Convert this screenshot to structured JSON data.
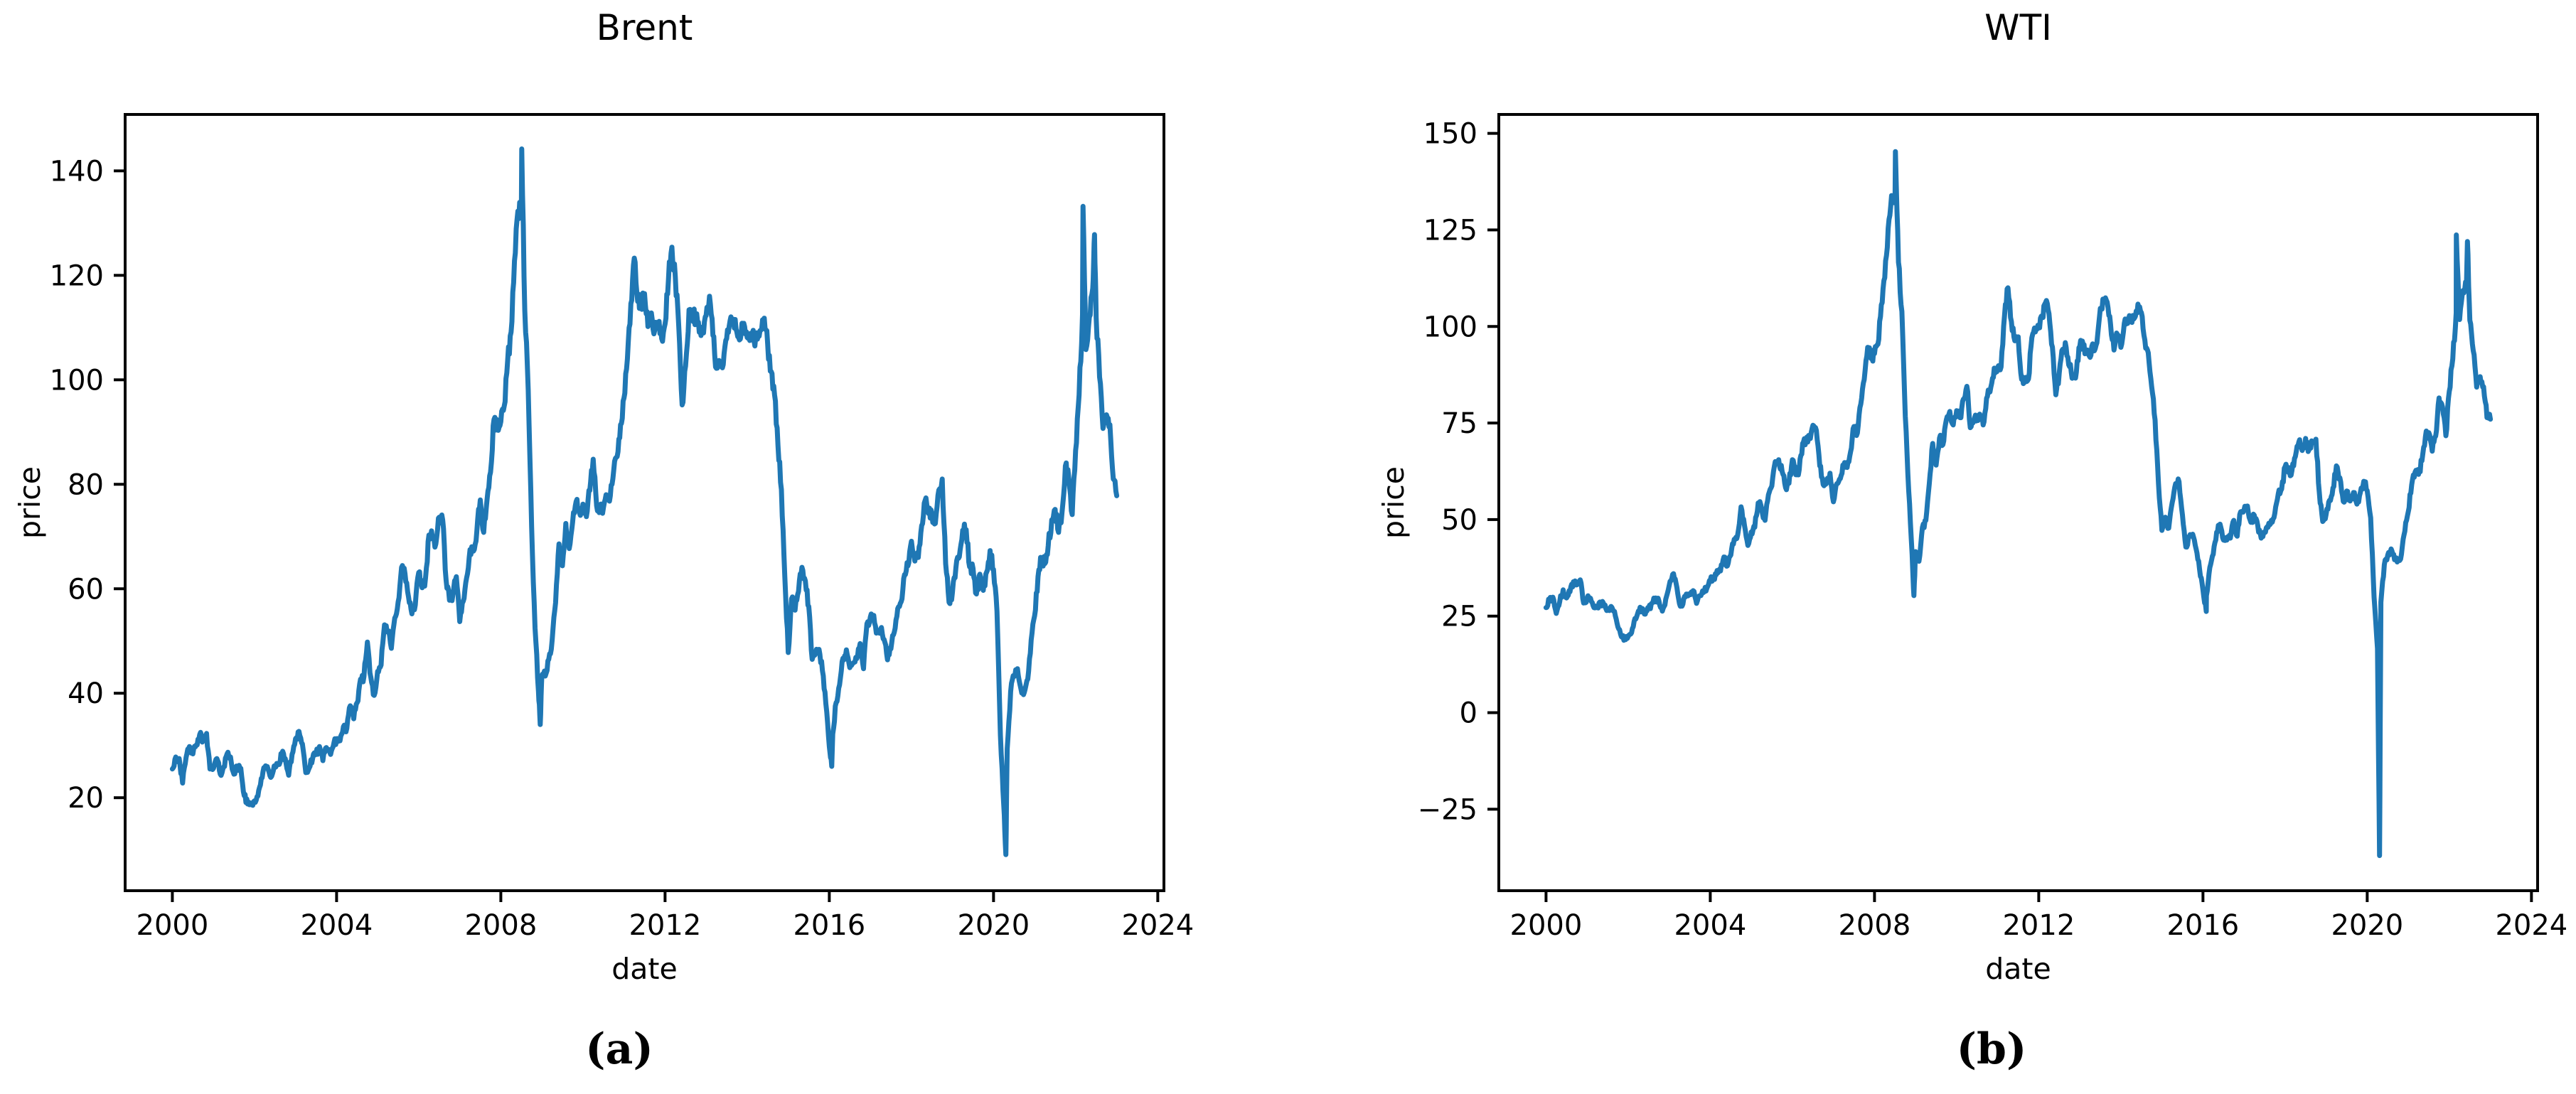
{
  "figure": {
    "background": "#ffffff",
    "axis_color": "#000000"
  },
  "chart_data": [
    {
      "type": "line",
      "title": "Brent",
      "xlabel": "date",
      "ylabel": "price",
      "caption": "(a)",
      "line_color": "#1f77b4",
      "legend": "none",
      "grid": false,
      "x_start_year": 2000,
      "x_interval": "monthly",
      "xlim": [
        1998.85,
        2024.15
      ],
      "ylim": [
        2.2,
        150.8
      ],
      "xticks": [
        2000,
        2004,
        2008,
        2012,
        2016,
        2020,
        2024
      ],
      "xtick_labels": [
        "2000",
        "2004",
        "2008",
        "2012",
        "2016",
        "2020",
        "2024"
      ],
      "yticks": [
        20,
        40,
        60,
        80,
        100,
        120,
        140
      ],
      "ytick_labels": [
        "20",
        "40",
        "60",
        "80",
        "100",
        "120",
        "140"
      ],
      "values": [
        25.5,
        27.8,
        27.5,
        22.8,
        27.7,
        29.8,
        28.4,
        30.1,
        32.1,
        30.9,
        32.3,
        25.5,
        25.6,
        27.5,
        24.5,
        25.9,
        28.4,
        27.8,
        24.5,
        25.7,
        25.6,
        20.4,
        18.8,
        18.7,
        19.4,
        20.3,
        23.7,
        25.7,
        25.4,
        24.1,
        25.8,
        26.6,
        28.4,
        27.5,
        24.3,
        28.3,
        31.3,
        32.7,
        30.3,
        24.8,
        25.7,
        27.5,
        28.3,
        29.8,
        27.1,
        29.6,
        28.7,
        29.8,
        31.3,
        30.9,
        33.6,
        33.3,
        37.6,
        35.1,
        38.2,
        42.7,
        43.2,
        49.8,
        43.1,
        39.6,
        44.2,
        45.4,
        53.1,
        51.9,
        48.6,
        54.4,
        57.5,
        64.1,
        62.9,
        58.5,
        55.2,
        56.9,
        63.1,
        60.2,
        62.1,
        70.3,
        69.8,
        68.6,
        73.7,
        73.2,
        61.7,
        57.8,
        58.9,
        62.3,
        53.7,
        57.6,
        62.1,
        67.5,
        67.2,
        71.1,
        77.0,
        70.8,
        77.2,
        82.3,
        92.4,
        91.0,
        92.0,
        95.0,
        103.7,
        109.1,
        122.8,
        132.3,
        133.2,
        113.2,
        98.1,
        71.9,
        52.5,
        40.4,
        43.4,
        43.3,
        46.5,
        50.2,
        57.3,
        68.6,
        64.4,
        72.5,
        67.7,
        72.8,
        76.7,
        74.5,
        76.2,
        73.8,
        78.8,
        84.8,
        75.9,
        74.8,
        75.6,
        77.1,
        77.8,
        82.7,
        85.3,
        91.4,
        96.5,
        104.0,
        114.6,
        123.3,
        115.0,
        113.8,
        116.5,
        110.2,
        112.8,
        109.5,
        110.5,
        107.9,
        110.7,
        119.3,
        125.4,
        119.7,
        110.3,
        95.2,
        102.6,
        113.4,
        112.9,
        111.7,
        109.1,
        109.5,
        112.3,
        116.0,
        108.5,
        102.2,
        102.6,
        102.9,
        107.9,
        111.3,
        111.6,
        109.1,
        107.8,
        110.8,
        108.1,
        108.9,
        107.5,
        107.8,
        109.5,
        111.8,
        106.8,
        101.6,
        97.1,
        87.4,
        79.0,
        62.3,
        47.8,
        58.1,
        55.9,
        59.5,
        64.1,
        61.5,
        56.6,
        46.5,
        47.6,
        48.4,
        44.3,
        38.0,
        29.8,
        32.2,
        38.2,
        41.6,
        46.7,
        48.3,
        44.9,
        45.8,
        46.6,
        49.5,
        44.7,
        53.3,
        54.6,
        54.9,
        51.6,
        52.3,
        50.3,
        46.4,
        48.5,
        51.7,
        56.2,
        57.5,
        62.7,
        64.4,
        69.1,
        65.3,
        66.0,
        72.1,
        76.9,
        74.4,
        74.3,
        72.5,
        78.9,
        81.0,
        64.8,
        57.4,
        59.4,
        64.0,
        66.1,
        71.2,
        71.3,
        64.2,
        63.9,
        59.0,
        62.8,
        59.7,
        63.2,
        67.3,
        63.7,
        55.7,
        32.0,
        18.4,
        29.4,
        40.3,
        43.2,
        44.7,
        40.9,
        40.2,
        42.7,
        50.2,
        54.8,
        62.3,
        65.7,
        64.8,
        68.3,
        73.2,
        75.2,
        70.8,
        74.5,
        83.5,
        81.1,
        74.2,
        86.5,
        97.1,
        112.5,
        105.8,
        112.0,
        117.5,
        111.9,
        100.5,
        90.7,
        93.3,
        91.4,
        81.0,
        77.8
      ],
      "extra_points": [
        [
          2008.51,
          144.2
        ],
        [
          2008.96,
          34.0
        ],
        [
          2016.06,
          26.0
        ],
        [
          2020.3,
          9.1
        ],
        [
          2022.18,
          133.2
        ],
        [
          2022.46,
          127.8
        ]
      ]
    },
    {
      "type": "line",
      "title": "WTI",
      "xlabel": "date",
      "ylabel": "price",
      "caption": "(b)",
      "line_color": "#1f77b4",
      "legend": "none",
      "grid": false,
      "x_start_year": 2000,
      "x_interval": "monthly",
      "xlim": [
        1998.85,
        2024.15
      ],
      "ylim": [
        -46.1,
        154.9
      ],
      "xticks": [
        2000,
        2004,
        2008,
        2012,
        2016,
        2020,
        2024
      ],
      "xtick_labels": [
        "2000",
        "2004",
        "2008",
        "2012",
        "2016",
        "2020",
        "2024"
      ],
      "yticks": [
        -25,
        0,
        25,
        50,
        75,
        100,
        125,
        150
      ],
      "ytick_labels": [
        "−25",
        "0",
        "25",
        "50",
        "75",
        "100",
        "125",
        "150"
      ],
      "values": [
        27.2,
        29.4,
        29.9,
        25.7,
        28.8,
        31.8,
        29.7,
        31.3,
        33.9,
        33.1,
        34.4,
        28.4,
        29.6,
        29.6,
        27.2,
        27.4,
        28.6,
        27.6,
        26.5,
        27.5,
        26.2,
        22.2,
        19.7,
        19.3,
        19.7,
        20.7,
        24.4,
        26.3,
        27.0,
        25.5,
        26.9,
        28.4,
        29.7,
        28.9,
        26.3,
        29.4,
        33.0,
        35.8,
        33.5,
        28.2,
        28.1,
        30.7,
        30.8,
        31.6,
        28.3,
        30.3,
        31.1,
        32.2,
        34.3,
        34.7,
        36.8,
        36.7,
        40.3,
        38.0,
        40.8,
        44.9,
        46.0,
        53.3,
        48.5,
        43.3,
        46.8,
        48.0,
        54.3,
        53.0,
        49.8,
        56.4,
        58.7,
        65.0,
        65.5,
        62.4,
        58.3,
        59.4,
        65.5,
        61.6,
        62.9,
        69.7,
        70.9,
        70.9,
        74.4,
        73.1,
        63.9,
        59.1,
        59.4,
        62.0,
        54.6,
        59.3,
        60.6,
        64.0,
        63.5,
        67.5,
        74.1,
        72.4,
        79.9,
        86.2,
        94.6,
        91.7,
        93.0,
        95.4,
        105.6,
        112.6,
        125.4,
        133.9,
        133.4,
        116.6,
        103.9,
        76.7,
        57.4,
        41.0,
        41.7,
        39.2,
        48.0,
        49.8,
        59.2,
        69.7,
        64.1,
        71.1,
        69.4,
        75.8,
        78.0,
        74.5,
        78.2,
        76.4,
        81.2,
        84.5,
        73.8,
        75.4,
        76.4,
        76.6,
        75.3,
        81.9,
        84.3,
        89.2,
        89.4,
        89.5,
        102.9,
        110.0,
        101.3,
        96.3,
        97.3,
        86.3,
        85.6,
        86.4,
        97.1,
        98.6,
        100.3,
        102.3,
        106.2,
        103.3,
        94.7,
        82.3,
        87.9,
        94.1,
        94.6,
        89.6,
        86.7,
        88.2,
        94.8,
        95.3,
        93.0,
        92.0,
        94.8,
        95.8,
        104.7,
        106.6,
        106.3,
        100.5,
        93.9,
        97.9,
        94.6,
        100.8,
        100.8,
        102.1,
        102.2,
        105.8,
        103.6,
        96.5,
        93.2,
        84.4,
        75.8,
        59.3,
        47.2,
        50.6,
        47.8,
        54.4,
        59.3,
        59.8,
        51.2,
        42.9,
        45.5,
        46.2,
        42.4,
        37.2,
        31.7,
        30.3,
        37.6,
        41.0,
        46.7,
        48.8,
        44.7,
        44.7,
        45.2,
        49.8,
        45.7,
        52.0,
        52.5,
        53.5,
        49.3,
        51.1,
        48.5,
        45.2,
        46.6,
        48.0,
        49.8,
        51.6,
        56.6,
        57.9,
        63.7,
        62.2,
        62.7,
        66.3,
        70.0,
        67.9,
        71.0,
        68.1,
        70.2,
        70.8,
        57.0,
        49.5,
        51.4,
        55.0,
        58.2,
        63.9,
        60.8,
        54.7,
        57.4,
        54.8,
        57.0,
        54.0,
        57.0,
        59.9,
        57.5,
        50.5,
        29.9,
        16.6,
        28.6,
        38.3,
        40.8,
        42.4,
        39.6,
        39.4,
        41.0,
        47.0,
        52.0,
        59.0,
        62.3,
        61.7,
        65.2,
        71.4,
        72.5,
        67.7,
        71.6,
        81.5,
        79.2,
        71.7,
        83.2,
        91.6,
        103.5,
        101.8,
        109.3,
        110.5,
        101.6,
        93.7,
        84.3,
        87.0,
        84.4,
        76.4,
        76.0
      ],
      "extra_points": [
        [
          2008.51,
          145.3
        ],
        [
          2008.96,
          30.3
        ],
        [
          2016.08,
          26.2
        ],
        [
          2020.3,
          -37.0
        ],
        [
          2022.17,
          123.7
        ],
        [
          2022.44,
          122.0
        ]
      ]
    }
  ]
}
